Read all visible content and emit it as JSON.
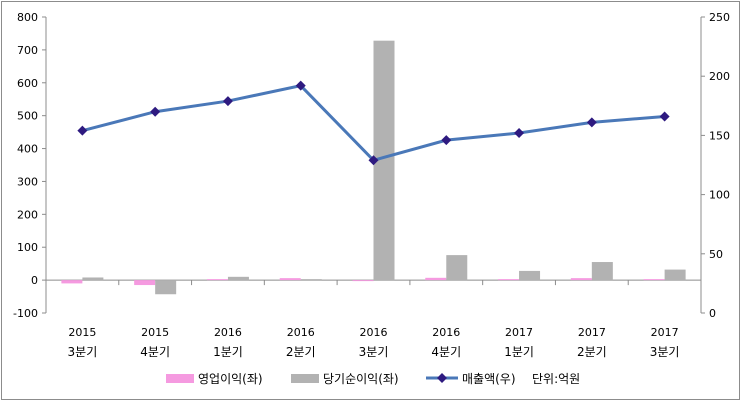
{
  "chart_data": {
    "type": "bar",
    "categories": [
      {
        "year": "2015",
        "quarter": "3분기"
      },
      {
        "year": "2015",
        "quarter": "4분기"
      },
      {
        "year": "2016",
        "quarter": "1분기"
      },
      {
        "year": "2016",
        "quarter": "2분기"
      },
      {
        "year": "2016",
        "quarter": "3분기"
      },
      {
        "year": "2016",
        "quarter": "4분기"
      },
      {
        "year": "2017",
        "quarter": "1분기"
      },
      {
        "year": "2017",
        "quarter": "2분기"
      },
      {
        "year": "2017",
        "quarter": "3분기"
      }
    ],
    "series": [
      {
        "name": "영업이익(좌)",
        "type": "bar",
        "axis": "left",
        "color": "#f59ae0",
        "values": [
          -10,
          -15,
          3,
          6,
          -2,
          7,
          3,
          6,
          3
        ]
      },
      {
        "name": "당기순이익(좌)",
        "type": "bar",
        "axis": "left",
        "color": "#b2b2b2",
        "values": [
          8,
          -43,
          10,
          3,
          728,
          76,
          28,
          55,
          32
        ]
      },
      {
        "name": "매출액(우)",
        "type": "line",
        "axis": "right",
        "color": "#4a78b8",
        "marker_color": "#2e1a80",
        "values": [
          154,
          170,
          179,
          192,
          129,
          146,
          152,
          161,
          166
        ]
      }
    ],
    "y_left": {
      "min": -100,
      "max": 800,
      "step": 100
    },
    "y_right": {
      "min": 0,
      "max": 250,
      "step": 50
    },
    "unit_note": "단위:억원",
    "legend_position": "bottom",
    "grid": false
  }
}
